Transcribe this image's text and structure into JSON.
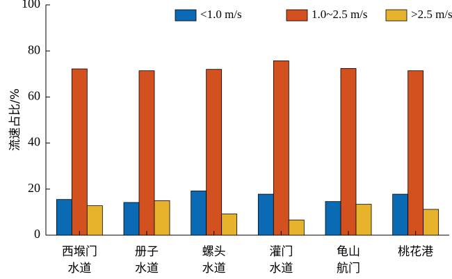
{
  "chart_data": {
    "type": "bar",
    "title": "",
    "xlabel": "",
    "ylabel": "流速占比/%",
    "ylim": [
      0,
      100
    ],
    "yticks": [
      0,
      20,
      40,
      60,
      80,
      100
    ],
    "legend_position": "top-right",
    "grid": false,
    "categories": [
      [
        "西堠门",
        "水道"
      ],
      [
        "册子",
        "水道"
      ],
      [
        "螺头",
        "水道"
      ],
      [
        "灌门",
        "水道"
      ],
      [
        "龟山",
        "航门"
      ],
      [
        "桃花港"
      ]
    ],
    "series": [
      {
        "name": "<1.0 m/s",
        "color": "#0a6bb4",
        "values": [
          15.5,
          14.2,
          19.2,
          17.8,
          14.6,
          17.8
        ]
      },
      {
        "name": "1.0~2.5 m/s",
        "color": "#d3501f",
        "values": [
          72.2,
          71.4,
          72.0,
          75.7,
          72.4,
          71.4
        ]
      },
      {
        "name": ">2.5 m/s",
        "color": "#e8b32c",
        "values": [
          12.8,
          15.0,
          9.2,
          6.6,
          13.4,
          11.2
        ]
      }
    ]
  }
}
